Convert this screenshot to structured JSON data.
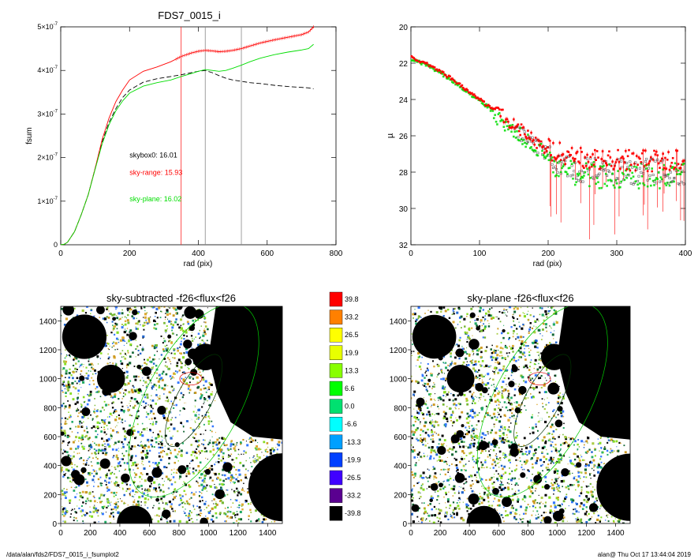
{
  "footer": {
    "path": "/data/alan/fds2/FDS7_0015_i_fsumplot2",
    "stamp": "alan@  Thu Oct 17 13:44:04 2019"
  },
  "colors": {
    "black_curve": "#000000",
    "sky_range": "#ff0000",
    "sky_plane": "#00dd00",
    "vline_red": "#ff2020",
    "vline_gray": "#888888"
  },
  "chart_data": [
    {
      "id": "fsum",
      "type": "line",
      "title": "FDS7_0015_i",
      "xlabel": "rad (pix)",
      "ylabel": "fsum",
      "xlim": [
        0,
        800
      ],
      "ylim": [
        0,
        5e-07
      ],
      "xticks": [
        0,
        200,
        400,
        600,
        800
      ],
      "xtick_labels": [
        "0",
        "200",
        "400",
        "600",
        "800"
      ],
      "yticks": [
        0,
        1e-07,
        2e-07,
        3e-07,
        4e-07,
        5e-07
      ],
      "ytick_labels": [
        {
          "mant": "0",
          "exp": ""
        },
        {
          "mant": "1×10",
          "exp": "-7"
        },
        {
          "mant": "2×10",
          "exp": "-7"
        },
        {
          "mant": "3×10",
          "exp": "-7"
        },
        {
          "mant": "4×10",
          "exp": "-7"
        },
        {
          "mant": "5×10",
          "exp": "-7"
        }
      ],
      "vlines": [
        {
          "x": 350,
          "color": "red"
        },
        {
          "x": 420,
          "color": "gray"
        },
        {
          "x": 525,
          "color": "gray"
        }
      ],
      "annotations": [
        {
          "text": "skybox0: 16.01",
          "color": "black",
          "x": 200,
          "y": 2e-07
        },
        {
          "text": "sky-range: 15.93",
          "color": "red",
          "x": 200,
          "y": 1.6e-07
        },
        {
          "text": "sky-plane: 16.02",
          "color": "green",
          "x": 200,
          "y": 1e-07
        }
      ],
      "series": [
        {
          "style": "dashed",
          "color": "black",
          "x": [
            0,
            10,
            20,
            40,
            60,
            80,
            100,
            120,
            140,
            160,
            180,
            200,
            240,
            280,
            320,
            350,
            380,
            400,
            420,
            440,
            460,
            480,
            500,
            525,
            550,
            580,
            620,
            660,
            700,
            720,
            735
          ],
          "y": [
            0,
            1e-09,
            6e-09,
            3e-08,
            7e-08,
            1.15e-07,
            1.75e-07,
            2.35e-07,
            2.8e-07,
            3.12e-07,
            3.38e-07,
            3.55e-07,
            3.73e-07,
            3.81e-07,
            3.86e-07,
            3.9e-07,
            3.95e-07,
            3.98e-07,
            4e-07,
            3.95e-07,
            3.88e-07,
            3.82e-07,
            3.78e-07,
            3.75e-07,
            3.72e-07,
            3.7e-07,
            3.66e-07,
            3.63e-07,
            3.61e-07,
            3.6e-07,
            3.58e-07
          ]
        },
        {
          "style": "solid-markers",
          "color": "red",
          "x": [
            0,
            10,
            20,
            40,
            60,
            80,
            100,
            120,
            140,
            160,
            180,
            200,
            240,
            280,
            320,
            350,
            380,
            400,
            420,
            440,
            460,
            480,
            500,
            525,
            550,
            580,
            620,
            660,
            700,
            720,
            735
          ],
          "y": [
            0,
            1e-09,
            6e-09,
            3e-08,
            7e-08,
            1.15e-07,
            1.75e-07,
            2.4e-07,
            2.9e-07,
            3.28e-07,
            3.55e-07,
            3.78e-07,
            3.98e-07,
            4.08e-07,
            4.2e-07,
            4.32e-07,
            4.4e-07,
            4.44e-07,
            4.46e-07,
            4.45e-07,
            4.43e-07,
            4.44e-07,
            4.46e-07,
            4.5e-07,
            4.56e-07,
            4.63e-07,
            4.7e-07,
            4.76e-07,
            4.82e-07,
            4.88e-07,
            5e-07
          ]
        },
        {
          "style": "solid",
          "color": "green",
          "x": [
            0,
            10,
            20,
            40,
            60,
            80,
            100,
            120,
            140,
            160,
            180,
            200,
            240,
            280,
            320,
            350,
            380,
            400,
            420,
            440,
            460,
            480,
            500,
            525,
            550,
            580,
            620,
            660,
            700,
            720,
            735
          ],
          "y": [
            0,
            1e-09,
            6e-09,
            3e-08,
            7e-08,
            1.15e-07,
            1.73e-07,
            2.3e-07,
            2.75e-07,
            3.07e-07,
            3.3e-07,
            3.48e-07,
            3.64e-07,
            3.72e-07,
            3.78e-07,
            3.86e-07,
            3.93e-07,
            3.98e-07,
            4.02e-07,
            4e-07,
            3.98e-07,
            4e-07,
            4.05e-07,
            4.12e-07,
            4.2e-07,
            4.28e-07,
            4.36e-07,
            4.42e-07,
            4.47e-07,
            4.5e-07,
            4.6e-07
          ]
        }
      ]
    },
    {
      "id": "mu",
      "type": "scatter",
      "title": "",
      "xlabel": "rad (pix)",
      "ylabel": "µ",
      "xlim": [
        0,
        400
      ],
      "ylim": [
        32,
        20
      ],
      "xticks": [
        0,
        100,
        200,
        300,
        400
      ],
      "yticks": [
        20,
        22,
        24,
        26,
        28,
        30,
        32
      ],
      "xtick_labels": [
        "0",
        "100",
        "200",
        "300",
        "400"
      ],
      "ytick_labels": [
        "20",
        "22",
        "24",
        "26",
        "28",
        "30",
        "32"
      ],
      "trend": {
        "x": [
          0,
          20,
          40,
          60,
          80,
          100,
          120,
          140,
          160,
          180,
          200,
          220,
          240,
          260,
          280,
          300,
          320,
          340,
          360,
          380,
          400
        ],
        "y": [
          21.7,
          22.0,
          22.4,
          22.9,
          23.45,
          24.0,
          24.6,
          25.15,
          25.75,
          26.35,
          26.8,
          27.1,
          27.3,
          27.4,
          27.45,
          27.5,
          27.5,
          27.5,
          27.5,
          27.5,
          27.5
        ]
      },
      "series": [
        {
          "name": "",
          "color": "red"
        },
        {
          "name": "",
          "color": "green"
        },
        {
          "name": "",
          "color": "black"
        }
      ]
    },
    {
      "id": "map1",
      "type": "heatmap",
      "title": "sky-subtracted -f26<flux<f26",
      "xlim": [
        0,
        1500
      ],
      "ylim": [
        0,
        1500
      ],
      "xticks": [
        0,
        200,
        400,
        600,
        800,
        1000,
        1200,
        1400
      ],
      "yticks": [
        0,
        200,
        400,
        600,
        800,
        1000,
        1200,
        1400
      ],
      "xtick_labels": [
        "0",
        "200",
        "400",
        "600",
        "800",
        "1000",
        "1200",
        "1400"
      ],
      "ytick_labels": [
        "0",
        "200",
        "400",
        "600",
        "800",
        "1000",
        "1200",
        "1400"
      ]
    },
    {
      "id": "map2",
      "type": "heatmap",
      "title": "sky-plane -f26<flux<f26",
      "xlim": [
        0,
        1500
      ],
      "ylim": [
        0,
        1500
      ],
      "xticks": [
        0,
        200,
        400,
        600,
        800,
        1000,
        1200,
        1400
      ],
      "yticks": [
        0,
        200,
        400,
        600,
        800,
        1000,
        1200,
        1400
      ],
      "xtick_labels": [
        "0",
        "200",
        "400",
        "600",
        "800",
        "1000",
        "1200",
        "1400"
      ],
      "ytick_labels": [
        "0",
        "200",
        "400",
        "600",
        "800",
        "1000",
        "1200",
        "1400"
      ]
    },
    {
      "id": "colorbar",
      "type": "table",
      "values": [
        "39.8",
        "33.2",
        "26.5",
        "19.9",
        "13.3",
        "6.6",
        "0.0",
        "-6.6",
        "-13.3",
        "-19.9",
        "-26.5",
        "-33.2",
        "-39.8"
      ],
      "colors": [
        "#ff0000",
        "#ff8000",
        "#ffff00",
        "#e8ff00",
        "#88ff00",
        "#00ff00",
        "#00e070",
        "#00ffff",
        "#00a0ff",
        "#0040ff",
        "#4000ff",
        "#5a0090",
        "#000000"
      ]
    }
  ]
}
